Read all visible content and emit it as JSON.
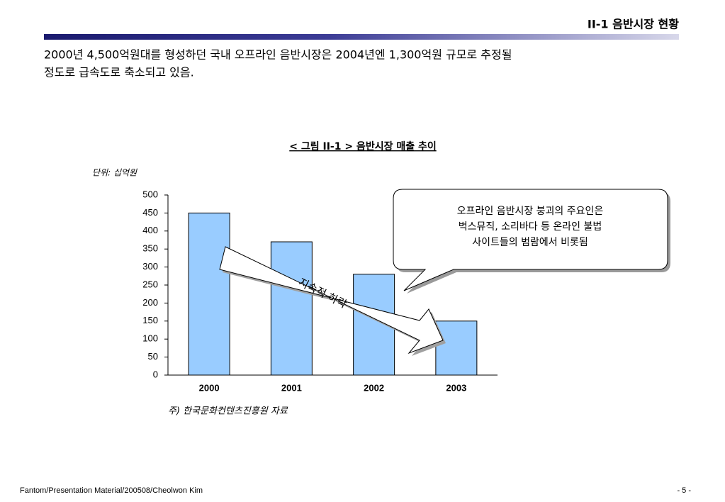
{
  "header": {
    "title": "II-1 음반시장 현황"
  },
  "summary": [
    "2000년 4,500억원대를 형성하던 국내 오프라인 음반시장은 2004년엔 1,300억원 규모로 추정될",
    "정도로 급속도로 축소되고 있음."
  ],
  "chart_data": {
    "type": "bar",
    "title": "< 그림 II-1 > 음반시장 매출 추이",
    "unit_label": "단위: 십억원",
    "categories": [
      "2000",
      "2001",
      "2002",
      "2003"
    ],
    "values": [
      450,
      370,
      280,
      150
    ],
    "color": "#99ccff",
    "ylim": [
      0,
      500
    ],
    "yticks": [
      0,
      50,
      100,
      150,
      200,
      250,
      300,
      350,
      400,
      450,
      500
    ],
    "arrow_label": "지속적 하락",
    "callout": [
      "오프라인 음반시장 붕괴의 주요인은",
      "벅스뮤직, 소리바다 등 온라인 불법",
      "사이트들의 범람에서 비롯됨"
    ],
    "source": "주) 한국문화컨텐츠진흥원 자료"
  },
  "footer": {
    "left": "Fantom/Presentation Material/200508/Cheolwon Kim",
    "page": "- 5 -"
  }
}
